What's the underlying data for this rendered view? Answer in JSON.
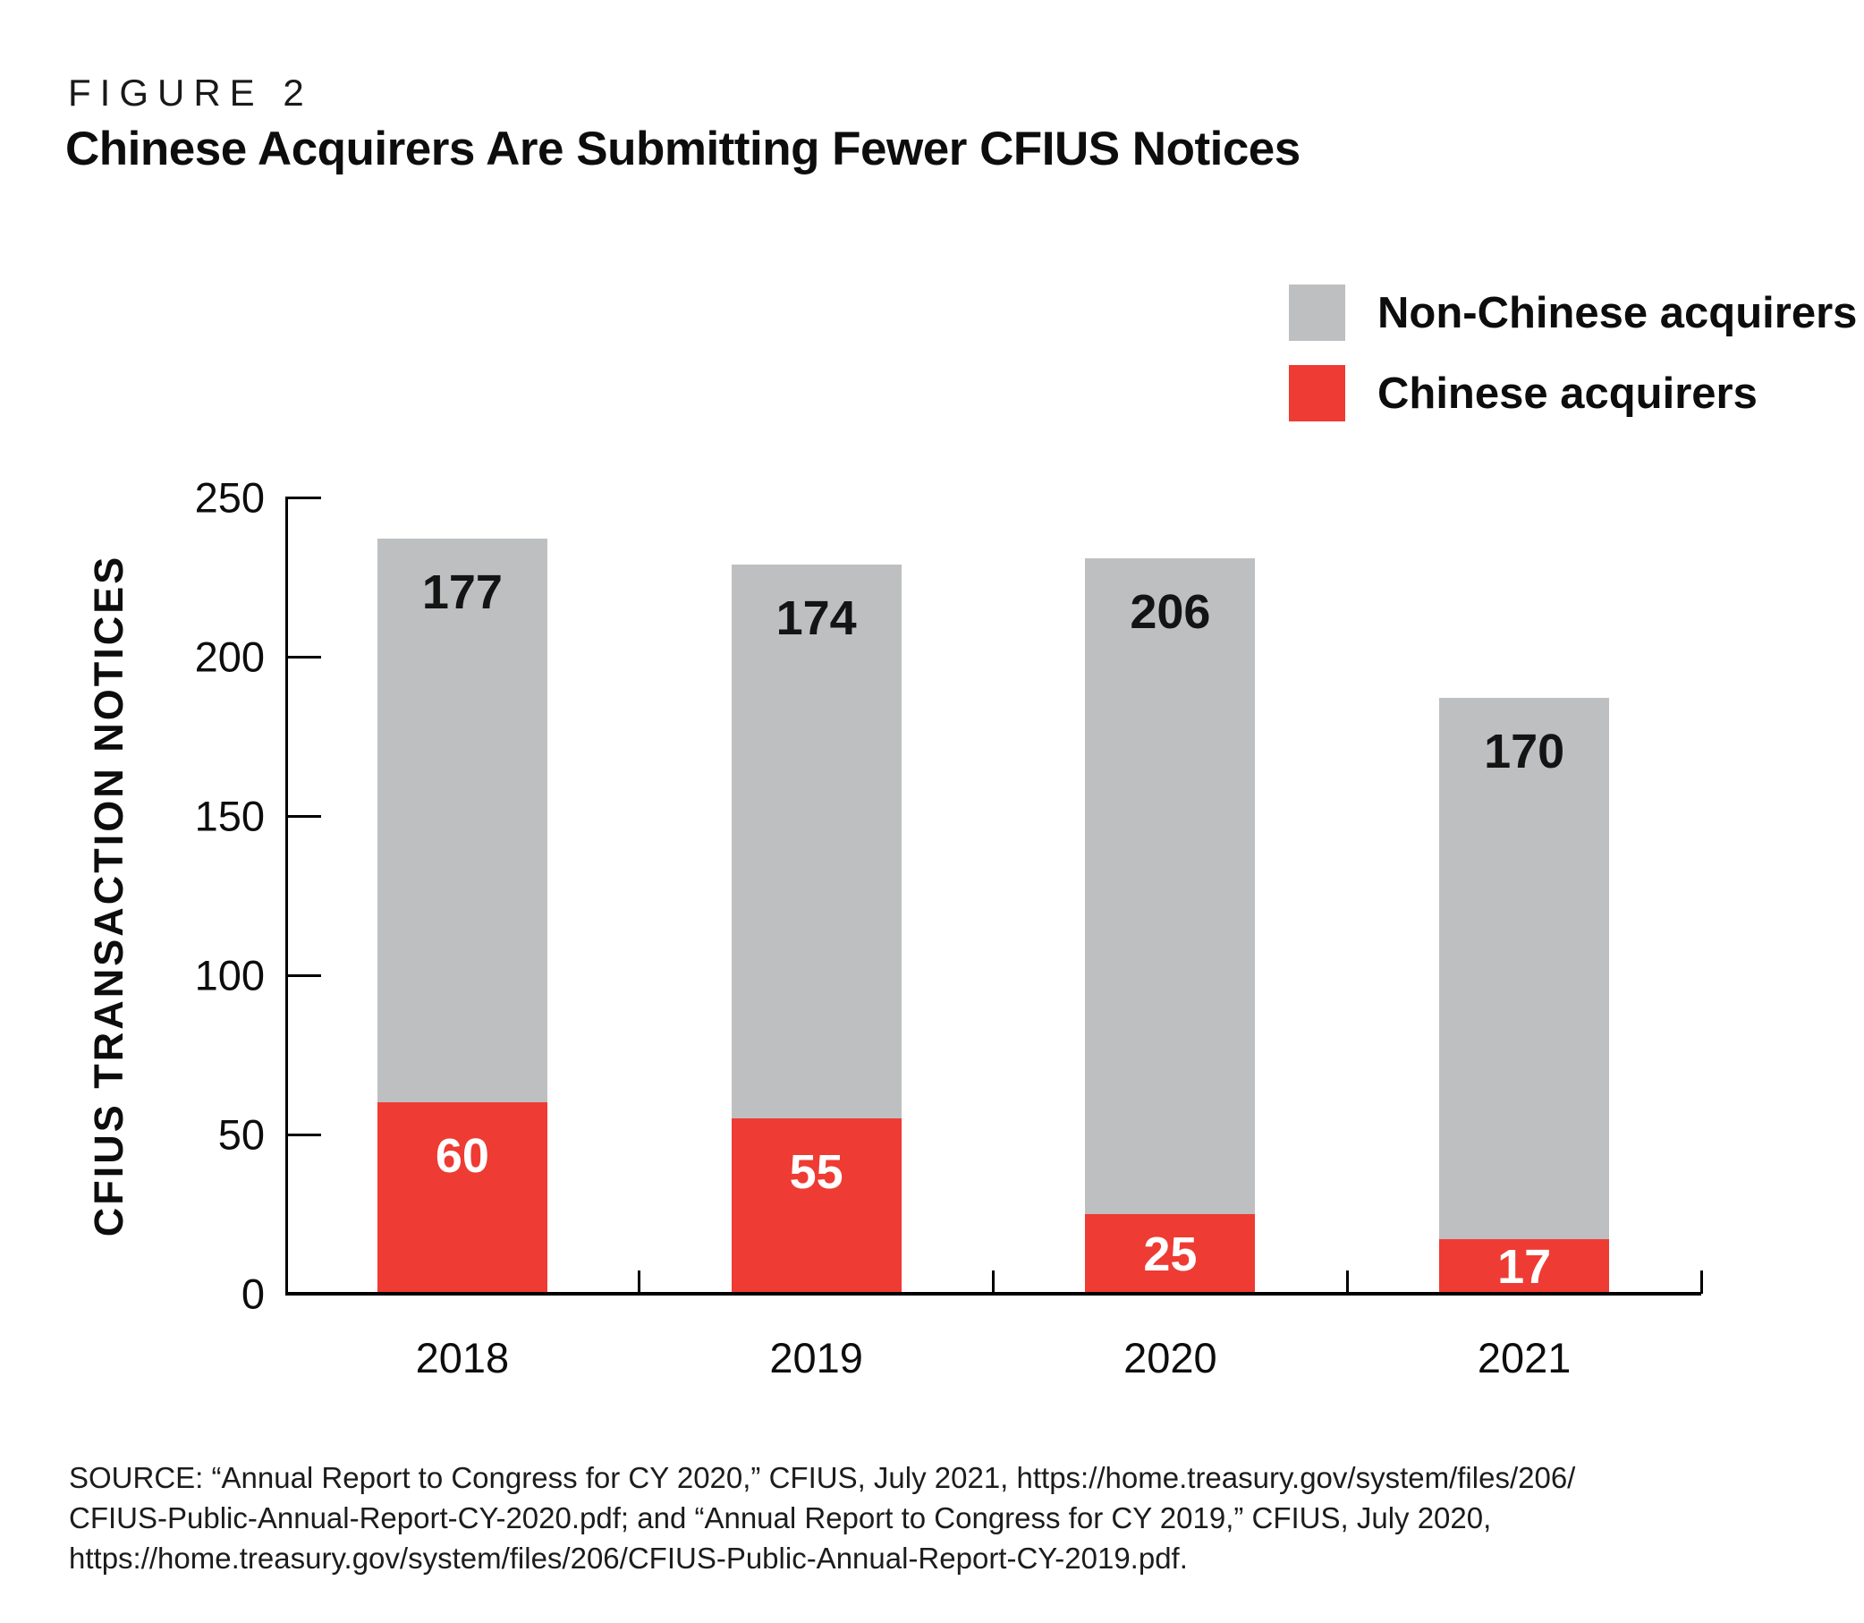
{
  "header": {
    "figure_label": "FIGURE 2",
    "title": "Chinese Acquirers Are Submitting Fewer CFIUS Notices"
  },
  "chart_data": {
    "type": "bar",
    "stacked": true,
    "title": "Chinese Acquirers Are Submitting Fewer CFIUS Notices",
    "categories": [
      "2018",
      "2019",
      "2020",
      "2021"
    ],
    "series": [
      {
        "name": "Chinese acquirers",
        "values": [
          60,
          55,
          25,
          17
        ],
        "color": "#ee3b33",
        "label_color": "#ffffff"
      },
      {
        "name": "Non-Chinese acquirers",
        "values": [
          177,
          174,
          206,
          170
        ],
        "color": "#bebfc1",
        "label_color": "#141414"
      }
    ],
    "bar_totals": [
      237,
      229,
      231,
      187
    ],
    "xlabel": "",
    "ylabel": "CFIUS TRANSACTION NOTICES",
    "ylim": [
      0,
      250
    ],
    "yticks": [
      0,
      50,
      100,
      150,
      200,
      250
    ],
    "grid": false,
    "legend_position": "top-right",
    "legend": [
      {
        "label": "Non-Chinese acquirers",
        "color": "#bebfc1"
      },
      {
        "label": "Chinese acquirers",
        "color": "#ee3b33"
      }
    ]
  },
  "colors": {
    "chinese_red": "#ee3b33",
    "non_chinese_gray": "#bebfc1",
    "axis_black": "#000000",
    "text_black": "#141414"
  },
  "source": {
    "lines": [
      "SOURCE: “Annual Report to Congress for CY 2020,” CFIUS, July 2021, https://home.treasury.gov/system/files/206/",
      "CFIUS-Public-Annual-Report-CY-2020.pdf; and “Annual Report to Congress for CY 2019,” CFIUS, July 2020,",
      "https://home.treasury.gov/system/files/206/CFIUS-Public-Annual-Report-CY-2019.pdf."
    ]
  }
}
